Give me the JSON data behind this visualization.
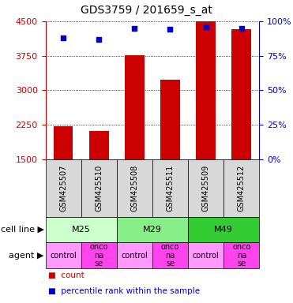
{
  "title": "GDS3759 / 201659_s_at",
  "samples": [
    "GSM425507",
    "GSM425510",
    "GSM425508",
    "GSM425511",
    "GSM425509",
    "GSM425512"
  ],
  "counts": [
    2220,
    2110,
    3760,
    3220,
    4490,
    4330
  ],
  "percentile_ranks": [
    88,
    87,
    95,
    94,
    96,
    95
  ],
  "ylim_left": [
    1500,
    4500
  ],
  "ylim_right": [
    0,
    100
  ],
  "yticks_left": [
    1500,
    2250,
    3000,
    3750,
    4500
  ],
  "yticks_right": [
    0,
    25,
    50,
    75,
    100
  ],
  "bar_color": "#CC0000",
  "dot_color": "#0000CC",
  "cell_line_groups": [
    {
      "label": "M25",
      "start": 0,
      "end": 2,
      "color": "#ccffcc"
    },
    {
      "label": "M29",
      "start": 2,
      "end": 4,
      "color": "#88ee88"
    },
    {
      "label": "M49",
      "start": 4,
      "end": 6,
      "color": "#33cc33"
    }
  ],
  "agent_labels": [
    "control",
    "onconase",
    "control",
    "onconase",
    "control",
    "onconase"
  ],
  "agent_color_control": "#ff99ff",
  "agent_color_onconase": "#ff44ee",
  "sample_cell_color": "#d8d8d8",
  "label_cellline": "cell line",
  "label_agent": "agent",
  "legend_count": "count",
  "legend_pct": "percentile rank within the sample",
  "bg_color": "#ffffff",
  "title_fontsize": 10,
  "tick_fontsize": 8,
  "cell_fontsize": 7,
  "label_fontsize": 8
}
